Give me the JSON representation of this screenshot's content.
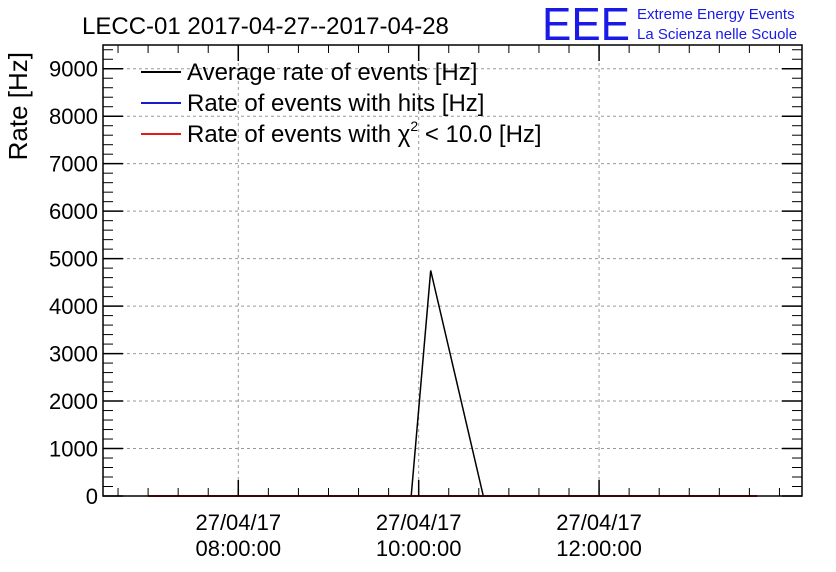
{
  "chart_data": {
    "type": "line",
    "title": "LECC-01 2017-04-27--2017-04-28",
    "ylabel": "Rate [Hz]",
    "xlabel": "",
    "ylim": [
      0,
      9500
    ],
    "y_ticks": [
      0,
      1000,
      2000,
      3000,
      4000,
      5000,
      6000,
      7000,
      8000,
      9000
    ],
    "x_range": [
      "2017-04-27 06:30:00",
      "2017-04-27 14:15:00"
    ],
    "x_ticks": [
      {
        "value": "2017-04-27 08:00:00",
        "date": "27/04/17",
        "time": "08:00:00"
      },
      {
        "value": "2017-04-27 10:00:00",
        "date": "27/04/17",
        "time": "10:00:00"
      },
      {
        "value": "2017-04-27 12:00:00",
        "date": "27/04/17",
        "time": "12:00:00"
      }
    ],
    "grid": true,
    "legend_position": "top-left",
    "series": [
      {
        "name": "Average rate of events [Hz]",
        "color": "#000000",
        "points": [
          [
            "2017-04-27 07:00:00",
            0
          ],
          [
            "2017-04-27 09:55:00",
            0
          ],
          [
            "2017-04-27 10:08:00",
            4750
          ],
          [
            "2017-04-27 10:43:00",
            0
          ],
          [
            "2017-04-27 13:45:00",
            0
          ]
        ]
      },
      {
        "name": "Rate of events with hits [Hz]",
        "color": "#1a1acc",
        "points": [
          [
            "2017-04-27 07:00:00",
            0
          ],
          [
            "2017-04-27 13:45:00",
            0
          ]
        ]
      },
      {
        "name": "Rate of events with χ² < 10.0 [Hz]",
        "name_parts": {
          "prefix": "Rate of events with ",
          "symbol": "χ",
          "sup": "2",
          "suffix": " < 10.0 [Hz]"
        },
        "color": "#e61a1a",
        "points": [
          [
            "2017-04-27 07:00:00",
            0
          ],
          [
            "2017-04-27 13:45:00",
            0
          ]
        ]
      }
    ]
  },
  "logo": {
    "mark": "EEE",
    "line1": "Extreme Energy Events",
    "line2": "La Scienza nelle Scuole",
    "color": "#1a1ae6"
  }
}
